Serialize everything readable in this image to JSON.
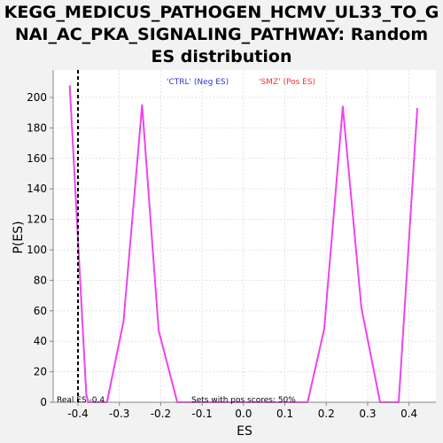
{
  "chart_data": {
    "type": "line",
    "title_lines": [
      "KEGG_MEDICUS_PATHOGEN_HCMV_UL33_TO_G",
      "NAI_AC_PKA_SIGNALING_PATHWAY: Random",
      "ES distribution"
    ],
    "xlabel": "ES",
    "ylabel": "P(ES)",
    "xlim": [
      -0.46,
      0.465
    ],
    "ylim": [
      0,
      218
    ],
    "x_ticks": [
      -0.4,
      -0.3,
      -0.2,
      -0.1,
      0.0,
      0.1,
      0.2,
      0.3,
      0.4
    ],
    "x_tick_labels": [
      "-0.4",
      "-0.3",
      "-0.2",
      "-0.1",
      "0.0",
      "0.1",
      "0.2",
      "0.3",
      "0.4"
    ],
    "y_ticks": [
      0,
      20,
      40,
      60,
      80,
      100,
      120,
      140,
      160,
      180,
      200
    ],
    "y_tick_labels": [
      "0",
      "20",
      "40",
      "60",
      "80",
      "100",
      "120",
      "140",
      "160",
      "180",
      "200"
    ],
    "grid": true,
    "series": [
      {
        "color": "#ee44ee",
        "points": [
          [
            -0.42,
            208
          ],
          [
            -0.38,
            5
          ],
          [
            -0.375,
            0
          ],
          [
            -0.33,
            0
          ],
          [
            -0.29,
            53
          ],
          [
            -0.245,
            195
          ],
          [
            -0.205,
            47
          ],
          [
            -0.16,
            0
          ],
          [
            0.155,
            0
          ],
          [
            0.195,
            48
          ],
          [
            0.24,
            194
          ],
          [
            0.285,
            62
          ],
          [
            0.33,
            0
          ],
          [
            0.375,
            0
          ],
          [
            0.42,
            193
          ]
        ]
      }
    ],
    "real_es": -0.4,
    "legend": [
      {
        "label": "'CTRL' (Neg ES)",
        "color": "#3333cc"
      },
      {
        "label": "'SMZ' (Pos ES)",
        "color": "#ee3333"
      }
    ],
    "annotations": {
      "real_es_label": "Real ES -0.4",
      "pos_scores_label": "Sets with pos scores: 50%"
    }
  }
}
